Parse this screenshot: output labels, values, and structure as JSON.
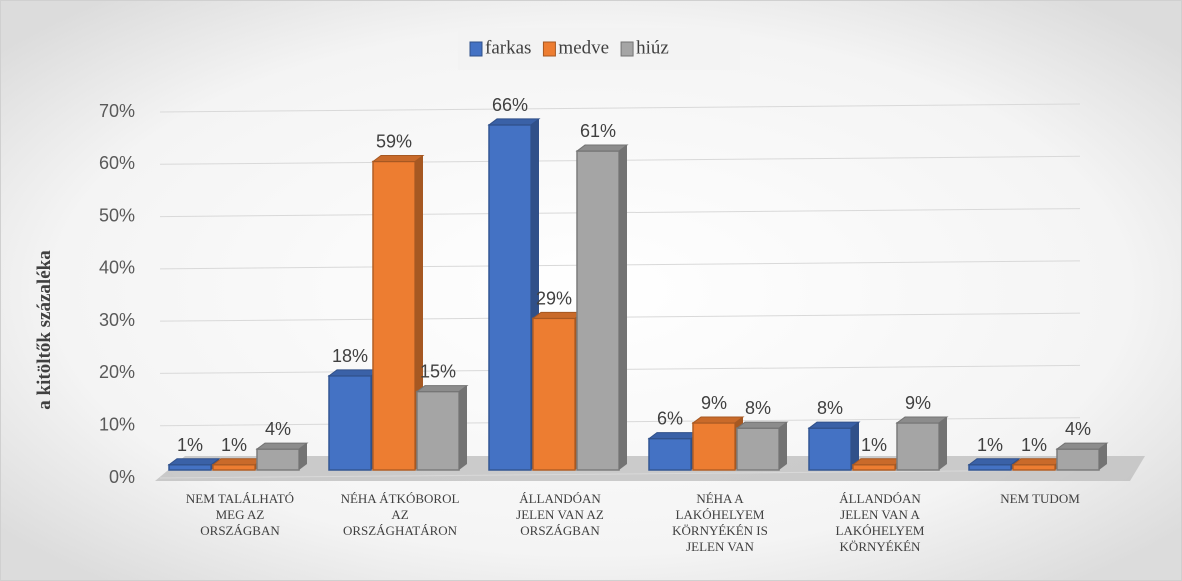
{
  "chart_data": {
    "type": "bar3d",
    "y_label": "a kitöltők százaléka",
    "categories": [
      "NEM TALÁLHATÓ MEG AZ ORSZÁGBAN",
      "NÉHA ÁTKÓBOROL AZ ORSZÁGHATÁRON",
      "ÁLLANDÓAN JELEN VAN AZ ORSZÁGBAN",
      "NÉHA A LAKÓHELYEM KÖRNYÉKÉN IS JELEN VAN",
      "ÁLLANDÓAN JELEN VAN A LAKÓHELYEM KÖRNYÉKÉN",
      "NEM TUDOM"
    ],
    "series": [
      {
        "name": "farkas",
        "color": "#4472c4",
        "values": [
          1,
          18,
          66,
          6,
          8,
          1
        ],
        "value_labels": [
          "1%",
          "18%",
          "66%",
          "6%",
          "8%",
          "1%"
        ]
      },
      {
        "name": "medve",
        "color": "#ed7d31",
        "values": [
          1,
          59,
          29,
          9,
          1,
          1
        ],
        "value_labels": [
          "1%",
          "59%",
          "29%",
          "9%",
          "1%",
          "1%"
        ]
      },
      {
        "name": "hiúz",
        "color": "#a5a5a5",
        "values": [
          4,
          15,
          61,
          8,
          9,
          4
        ],
        "value_labels": [
          "4%",
          "15%",
          "61%",
          "8%",
          "9%",
          "4%"
        ]
      }
    ],
    "ylim": [
      0,
      70
    ],
    "yticks": [
      {
        "value": 0,
        "label": "0%"
      },
      {
        "value": 10,
        "label": "10%"
      },
      {
        "value": 20,
        "label": "20%"
      },
      {
        "value": 30,
        "label": "30%"
      },
      {
        "value": 40,
        "label": "40%"
      },
      {
        "value": 50,
        "label": "50%"
      },
      {
        "value": 60,
        "label": "60%"
      },
      {
        "value": 70,
        "label": "70%"
      }
    ],
    "grid": true,
    "legend": "top"
  }
}
